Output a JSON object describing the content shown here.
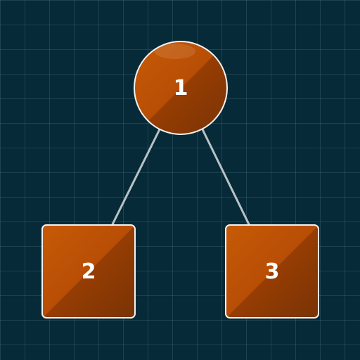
{
  "diagram": {
    "type": "tree",
    "nodes": [
      {
        "id": "1",
        "label": "1",
        "shape": "circle"
      },
      {
        "id": "2",
        "label": "2",
        "shape": "square"
      },
      {
        "id": "3",
        "label": "3",
        "shape": "square"
      }
    ],
    "edges": [
      {
        "from": "1",
        "to": "2"
      },
      {
        "from": "1",
        "to": "3"
      }
    ]
  },
  "colors": {
    "background": "#062a37",
    "grid_line": "#2f5866",
    "node_fill": "#b84e05",
    "node_fill_dark": "#7a3304",
    "node_border": "#f3f3f3",
    "edge": "#b8c2c6",
    "label": "#ffffff"
  }
}
